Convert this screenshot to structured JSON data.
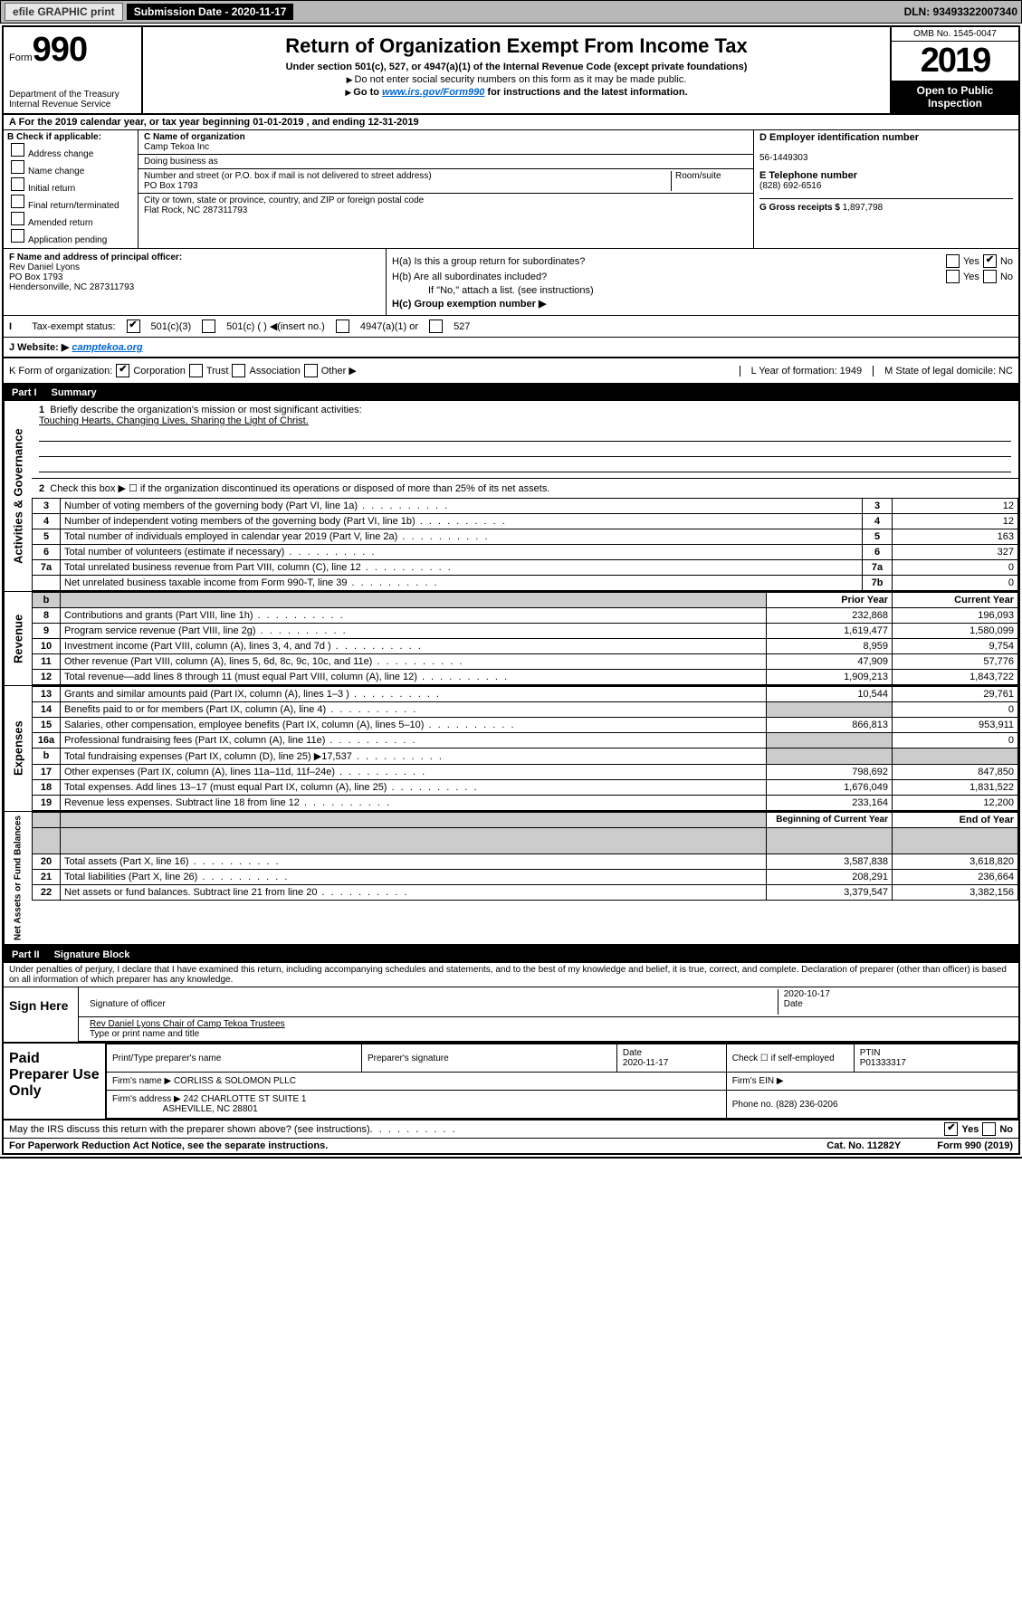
{
  "topbar": {
    "efile": "efile GRAPHIC print",
    "submission": "Submission Date - 2020-11-17",
    "dln": "DLN: 93493322007340"
  },
  "header": {
    "form_label": "Form",
    "form_number": "990",
    "dept1": "Department of the Treasury",
    "dept2": "Internal Revenue Service",
    "title": "Return of Organization Exempt From Income Tax",
    "subtitle": "Under section 501(c), 527, or 4947(a)(1) of the Internal Revenue Code (except private foundations)",
    "note1": "Do not enter social security numbers on this form as it may be made public.",
    "note2a": "Go to ",
    "note2_link": "www.irs.gov/Form990",
    "note2b": " for instructions and the latest information.",
    "omb": "OMB No. 1545-0047",
    "year": "2019",
    "open1": "Open to Public",
    "open2": "Inspection"
  },
  "rowA": "A  For the 2019 calendar year, or tax year beginning 01-01-2019    , and ending 12-31-2019",
  "colB": {
    "title": "B Check if applicable:",
    "opts": [
      "Address change",
      "Name change",
      "Initial return",
      "Final return/terminated",
      "Amended return",
      "Application pending"
    ]
  },
  "colC": {
    "name_label": "C Name of organization",
    "name": "Camp Tekoa Inc",
    "dba_label": "Doing business as",
    "addr_label": "Number and street (or P.O. box if mail is not delivered to street address)",
    "room_label": "Room/suite",
    "addr": "PO Box 1793",
    "city_label": "City or town, state or province, country, and ZIP or foreign postal code",
    "city": "Flat Rock, NC  287311793"
  },
  "colD": {
    "ein_label": "D Employer identification number",
    "ein": "56-1449303",
    "tel_label": "E Telephone number",
    "tel": "(828) 692-6516",
    "gross_label": "G Gross receipts $",
    "gross": "1,897,798"
  },
  "colF": {
    "label": "F  Name and address of principal officer:",
    "line1": "Rev Daniel Lyons",
    "line2": "PO Box 1793",
    "line3": "Hendersonville, NC  287311793"
  },
  "colH": {
    "ha": "H(a)  Is this a group return for subordinates?",
    "hb": "H(b)  Are all subordinates included?",
    "hb_note": "If \"No,\" attach a list. (see instructions)",
    "hc": "H(c)  Group exemption number ▶",
    "yes": "Yes",
    "no": "No"
  },
  "rowI": {
    "label": "Tax-exempt status:",
    "o1": "501(c)(3)",
    "o2": "501(c) (   ) ◀(insert no.)",
    "o3": "4947(a)(1) or",
    "o4": "527"
  },
  "rowJ": {
    "label": "J   Website: ▶",
    "val": "camptekoa.org"
  },
  "rowK": {
    "label": "K Form of organization:",
    "o1": "Corporation",
    "o2": "Trust",
    "o3": "Association",
    "o4": "Other ▶",
    "L": "L Year of formation: 1949",
    "M": "M State of legal domicile: NC"
  },
  "part1": {
    "num": "Part I",
    "title": "Summary",
    "q1": "Briefly describe the organization's mission or most significant activities:",
    "mission": "Touching Hearts, Changing Lives, Sharing the Light of Christ.",
    "q2": "Check this box ▶ ☐  if the organization discontinued its operations or disposed of more than 25% of its net assets.",
    "lines_gov": [
      {
        "n": "3",
        "d": "Number of voting members of the governing body (Part VI, line 1a)",
        "k": "3",
        "v": "12"
      },
      {
        "n": "4",
        "d": "Number of independent voting members of the governing body (Part VI, line 1b)",
        "k": "4",
        "v": "12"
      },
      {
        "n": "5",
        "d": "Total number of individuals employed in calendar year 2019 (Part V, line 2a)",
        "k": "5",
        "v": "163"
      },
      {
        "n": "6",
        "d": "Total number of volunteers (estimate if necessary)",
        "k": "6",
        "v": "327"
      },
      {
        "n": "7a",
        "d": "Total unrelated business revenue from Part VIII, column (C), line 12",
        "k": "7a",
        "v": "0"
      },
      {
        "n": "",
        "d": "Net unrelated business taxable income from Form 990-T, line 39",
        "k": "7b",
        "v": "0"
      }
    ],
    "col_prior": "Prior Year",
    "col_current": "Current Year",
    "lines_rev": [
      {
        "n": "8",
        "d": "Contributions and grants (Part VIII, line 1h)",
        "p": "232,868",
        "c": "196,093"
      },
      {
        "n": "9",
        "d": "Program service revenue (Part VIII, line 2g)",
        "p": "1,619,477",
        "c": "1,580,099"
      },
      {
        "n": "10",
        "d": "Investment income (Part VIII, column (A), lines 3, 4, and 7d )",
        "p": "8,959",
        "c": "9,754"
      },
      {
        "n": "11",
        "d": "Other revenue (Part VIII, column (A), lines 5, 6d, 8c, 9c, 10c, and 11e)",
        "p": "47,909",
        "c": "57,776"
      },
      {
        "n": "12",
        "d": "Total revenue—add lines 8 through 11 (must equal Part VIII, column (A), line 12)",
        "p": "1,909,213",
        "c": "1,843,722"
      }
    ],
    "lines_exp": [
      {
        "n": "13",
        "d": "Grants and similar amounts paid (Part IX, column (A), lines 1–3 )",
        "p": "10,544",
        "c": "29,761"
      },
      {
        "n": "14",
        "d": "Benefits paid to or for members (Part IX, column (A), line 4)",
        "p": "",
        "c": "0"
      },
      {
        "n": "15",
        "d": "Salaries, other compensation, employee benefits (Part IX, column (A), lines 5–10)",
        "p": "866,813",
        "c": "953,911"
      },
      {
        "n": "16a",
        "d": "Professional fundraising fees (Part IX, column (A), line 11e)",
        "p": "",
        "c": "0"
      },
      {
        "n": "b",
        "d": "Total fundraising expenses (Part IX, column (D), line 25) ▶17,537",
        "p": "",
        "c": ""
      },
      {
        "n": "17",
        "d": "Other expenses (Part IX, column (A), lines 11a–11d, 11f–24e)",
        "p": "798,692",
        "c": "847,850"
      },
      {
        "n": "18",
        "d": "Total expenses. Add lines 13–17 (must equal Part IX, column (A), line 25)",
        "p": "1,676,049",
        "c": "1,831,522"
      },
      {
        "n": "19",
        "d": "Revenue less expenses. Subtract line 18 from line 12",
        "p": "233,164",
        "c": "12,200"
      }
    ],
    "col_begin": "Beginning of Current Year",
    "col_end": "End of Year",
    "lines_net": [
      {
        "n": "20",
        "d": "Total assets (Part X, line 16)",
        "p": "3,587,838",
        "c": "3,618,820"
      },
      {
        "n": "21",
        "d": "Total liabilities (Part X, line 26)",
        "p": "208,291",
        "c": "236,664"
      },
      {
        "n": "22",
        "d": "Net assets or fund balances. Subtract line 21 from line 20",
        "p": "3,379,547",
        "c": "3,382,156"
      }
    ]
  },
  "part2": {
    "num": "Part II",
    "title": "Signature Block",
    "decl": "Under penalties of perjury, I declare that I have examined this return, including accompanying schedules and statements, and to the best of my knowledge and belief, it is true, correct, and complete. Declaration of preparer (other than officer) is based on all information of which preparer has any knowledge."
  },
  "sign": {
    "label": "Sign Here",
    "sig_label": "Signature of officer",
    "date_label": "Date",
    "date": "2020-10-17",
    "name": "Rev Daniel Lyons  Chair of Camp Tekoa Trustees",
    "name_label": "Type or print name and title"
  },
  "paid": {
    "label": "Paid Preparer Use Only",
    "h1": "Print/Type preparer's name",
    "h2": "Preparer's signature",
    "h3": "Date",
    "h3v": "2020-11-17",
    "h4": "Check ☐ if self-employed",
    "h5": "PTIN",
    "h5v": "P01333317",
    "firm_name_l": "Firm's name     ▶",
    "firm_name": "CORLISS & SOLOMON PLLC",
    "firm_ein_l": "Firm's EIN ▶",
    "firm_addr_l": "Firm's address ▶",
    "firm_addr1": "242 CHARLOTTE ST SUITE 1",
    "firm_addr2": "ASHEVILLE, NC  28801",
    "phone_l": "Phone no.",
    "phone": "(828) 236-0206"
  },
  "footer": {
    "discuss": "May the IRS discuss this return with the preparer shown above? (see instructions)",
    "yes": "Yes",
    "no": "No",
    "paperwork": "For Paperwork Reduction Act Notice, see the separate instructions.",
    "cat": "Cat. No. 11282Y",
    "form": "Form 990 (2019)"
  },
  "side": {
    "gov": "Activities & Governance",
    "rev": "Revenue",
    "exp": "Expenses",
    "net": "Net Assets or Fund Balances"
  }
}
